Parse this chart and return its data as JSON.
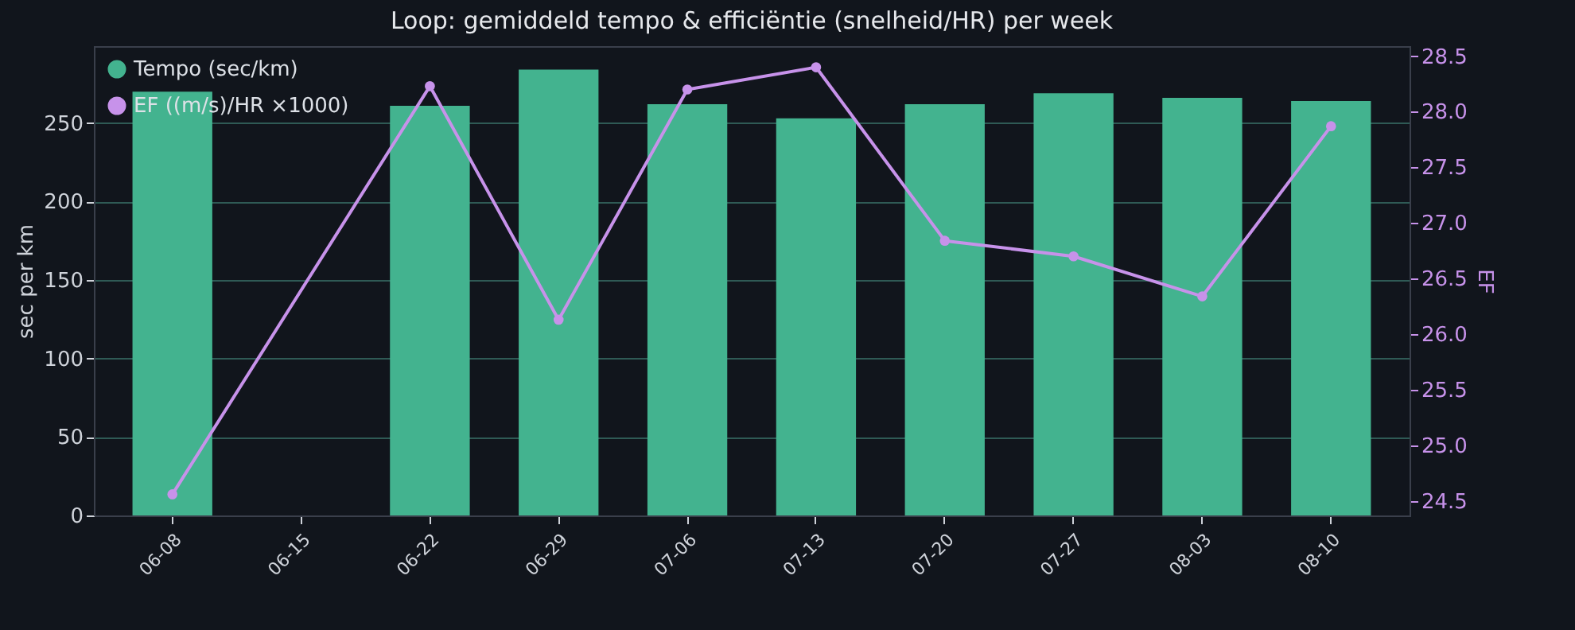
{
  "chart_data": {
    "type": "bar",
    "title": "Loop: gemiddeld tempo & efficiëntie (snelheid/HR) per week",
    "ylabel": "sec per km",
    "y2label": "EF",
    "categories": [
      "06-08",
      "06-15",
      "06-22",
      "06-29",
      "07-06",
      "07-13",
      "07-20",
      "07-27",
      "08-03",
      "08-10"
    ],
    "series": [
      {
        "name": "Tempo (sec/km)",
        "color": "#43b38f",
        "values": [
          270,
          null,
          261,
          284,
          262,
          253,
          262,
          269,
          266,
          264
        ]
      },
      {
        "name": "EF ((m/s)/HR ×1000)",
        "type": "line",
        "axis": "y2",
        "color": "#c792ea",
        "marker": "circle",
        "values": [
          24.56,
          null,
          28.23,
          26.13,
          28.2,
          28.4,
          26.84,
          26.7,
          26.34,
          27.87
        ]
      }
    ],
    "ylim": [
      0,
      299
    ],
    "yticks": [
      0,
      50,
      100,
      150,
      200,
      250
    ],
    "y2lim": [
      24.37,
      28.59
    ],
    "y2ticks": [
      24.5,
      {
        "value": 25,
        "label": "25.0"
      },
      25.5,
      {
        "value": 26,
        "label": "26.0"
      },
      26.5,
      {
        "value": 27,
        "label": "27.0"
      },
      27.5,
      {
        "value": 28,
        "label": "28.0"
      },
      28.5
    ],
    "grid": "y",
    "legend": "top left"
  }
}
